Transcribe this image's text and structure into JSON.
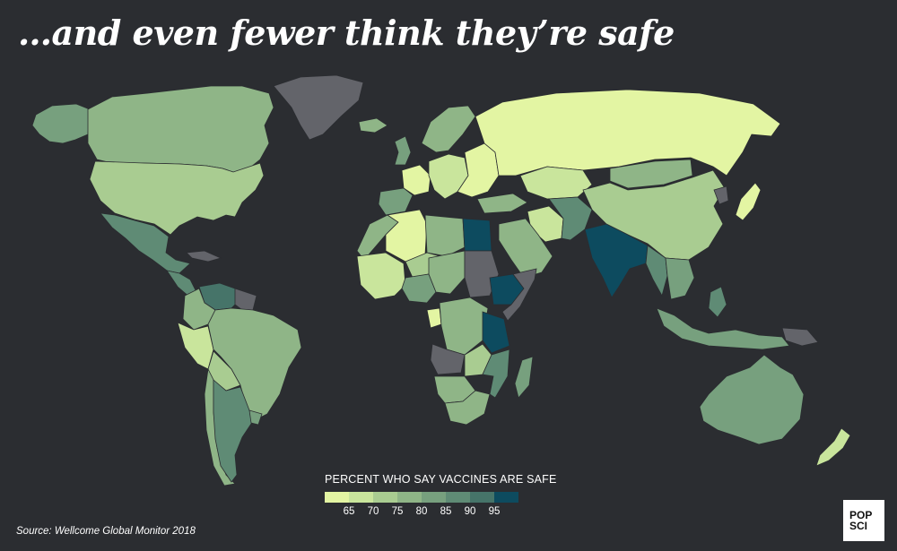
{
  "title": "…and even fewer think they’re safe",
  "legend": {
    "title": "PERCENT WHO SAY VACCINES ARE SAFE",
    "ticks": [
      "65",
      "70",
      "75",
      "80",
      "85",
      "90",
      "95"
    ],
    "colors": [
      "#e3f5a3",
      "#c9e59c",
      "#a9cc91",
      "#8fb587",
      "#77a07e",
      "#5f8b75",
      "#467469",
      "#0d4b5f"
    ]
  },
  "source": "Source: Wellcome Global Monitor 2018",
  "logo": {
    "line1": "POP",
    "line2": "SCI"
  },
  "colors": {
    "background": "#2b2d31",
    "no_data": "#63646a"
  },
  "regions": [
    {
      "name": "Alaska",
      "bin": 4
    },
    {
      "name": "Canada",
      "bin": 3
    },
    {
      "name": "Greenland",
      "bin": "none"
    },
    {
      "name": "United States",
      "bin": 2
    },
    {
      "name": "Mexico",
      "bin": 5
    },
    {
      "name": "Cuba",
      "bin": "none"
    },
    {
      "name": "Venezuela",
      "bin": 6
    },
    {
      "name": "Colombia",
      "bin": 3
    },
    {
      "name": "Peru",
      "bin": 1
    },
    {
      "name": "Brazil",
      "bin": 3
    },
    {
      "name": "Bolivia",
      "bin": 2
    },
    {
      "name": "Chile",
      "bin": 3
    },
    {
      "name": "Argentina",
      "bin": 5
    },
    {
      "name": "Uruguay",
      "bin": 4
    },
    {
      "name": "Iceland",
      "bin": 3
    },
    {
      "name": "United Kingdom",
      "bin": 4
    },
    {
      "name": "France",
      "bin": 0
    },
    {
      "name": "Iberia",
      "bin": 4
    },
    {
      "name": "Scandinavia",
      "bin": 3
    },
    {
      "name": "Central Europe",
      "bin": 1
    },
    {
      "name": "Eastern Europe",
      "bin": 0
    },
    {
      "name": "Russia",
      "bin": 0
    },
    {
      "name": "Turkey",
      "bin": 3
    },
    {
      "name": "Kazakhstan",
      "bin": 1
    },
    {
      "name": "Mongolia",
      "bin": 3
    },
    {
      "name": "China",
      "bin": 2
    },
    {
      "name": "North Korea",
      "bin": "none"
    },
    {
      "name": "Japan",
      "bin": 0
    },
    {
      "name": "Iran",
      "bin": 1
    },
    {
      "name": "Saudi Arabia",
      "bin": 3
    },
    {
      "name": "Afghanistan",
      "bin": 5
    },
    {
      "name": "India",
      "bin": 7
    },
    {
      "name": "Myanmar",
      "bin": 5
    },
    {
      "name": "Indochina",
      "bin": 4
    },
    {
      "name": "Algeria",
      "bin": 0
    },
    {
      "name": "Morocco",
      "bin": 3
    },
    {
      "name": "Libya",
      "bin": 3
    },
    {
      "name": "Egypt",
      "bin": 7
    },
    {
      "name": "Sudan",
      "bin": "none"
    },
    {
      "name": "West Africa",
      "bin": 1
    },
    {
      "name": "Mali",
      "bin": 2
    },
    {
      "name": "Nigeria",
      "bin": 4
    },
    {
      "name": "Chad",
      "bin": 3
    },
    {
      "name": "Ethiopia",
      "bin": 7
    },
    {
      "name": "Somalia",
      "bin": "none"
    },
    {
      "name": "DR Congo",
      "bin": 3
    },
    {
      "name": "Gabon",
      "bin": 0
    },
    {
      "name": "Tanzania",
      "bin": 7
    },
    {
      "name": "Angola",
      "bin": "none"
    },
    {
      "name": "Zambia",
      "bin": 2
    },
    {
      "name": "Mozambique",
      "bin": 5
    },
    {
      "name": "Namibia",
      "bin": 3
    },
    {
      "name": "South Africa",
      "bin": 3
    },
    {
      "name": "Madagascar",
      "bin": 4
    },
    {
      "name": "Indonesia",
      "bin": 4
    },
    {
      "name": "Philippines",
      "bin": 5
    },
    {
      "name": "Papua New Guinea",
      "bin": "none"
    },
    {
      "name": "Australia",
      "bin": 4
    },
    {
      "name": "New Zealand",
      "bin": 1
    }
  ]
}
